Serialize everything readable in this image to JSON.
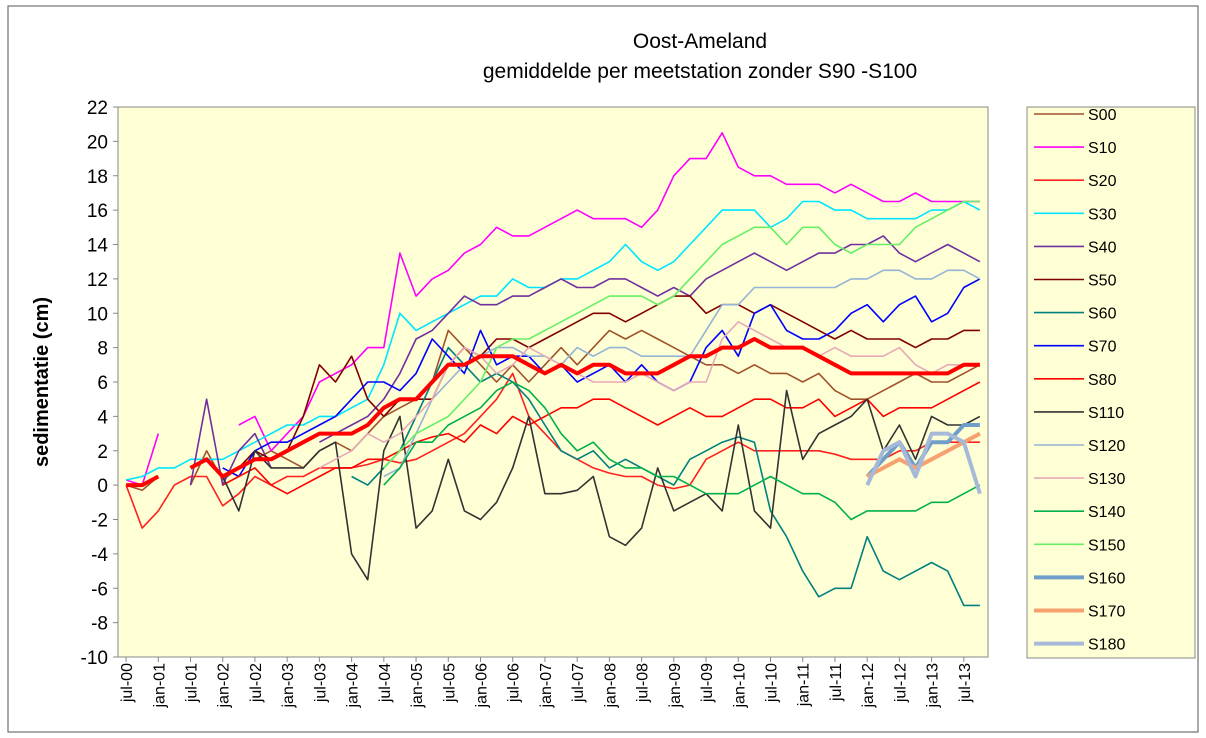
{
  "chart_data": {
    "type": "line",
    "title": "Oost-Ameland",
    "subtitle": "gemiddelde per meetstation zonder S90 -S100",
    "y_label": "sedimentatie (cm)",
    "legend": "right",
    "categories": [
      "jul-00",
      null,
      "jan-01",
      null,
      "jul-01",
      null,
      "jan-02",
      null,
      "jul-02",
      null,
      "jan-03",
      null,
      "jul-03",
      null,
      "jan-04",
      null,
      "jul-04",
      null,
      "jan-05",
      null,
      "jul-05",
      null,
      "jan-06",
      null,
      "jul-06",
      null,
      "jan-07",
      null,
      "jul-07",
      null,
      "jan-08",
      null,
      "jul-08",
      null,
      "jan-09",
      null,
      "jul-09",
      null,
      "jan-10",
      null,
      "jul-10",
      null,
      "jan-11",
      null,
      "jul-11",
      null,
      "jan-12",
      null,
      "jul-12",
      null,
      "jan-13",
      null,
      "jul-13",
      null
    ],
    "ylim": [
      -10,
      22
    ],
    "yticks": [
      -10,
      -8,
      -6,
      -4,
      -2,
      0,
      2,
      4,
      6,
      8,
      10,
      12,
      14,
      16,
      18,
      20,
      22
    ],
    "series": [
      {
        "name": "S00",
        "color": "#a0522d",
        "values": [
          0,
          -0.3,
          0.5,
          null,
          0,
          2,
          0.3,
          1,
          1.5,
          2,
          1.5,
          1,
          2,
          2.5,
          2,
          3,
          4,
          4.5,
          5,
          6,
          9,
          8,
          7,
          6,
          7,
          6,
          7,
          8,
          7,
          8,
          9,
          8.5,
          9,
          8.5,
          8,
          7.5,
          7,
          7,
          6.5,
          7,
          6.5,
          6.5,
          6,
          6.5,
          5.5,
          5,
          5,
          5.5,
          6,
          6.5,
          6,
          6,
          6.5,
          7
        ]
      },
      {
        "name": "S10",
        "color": "#ff00ff",
        "values": [
          0.3,
          0,
          3,
          null,
          null,
          null,
          null,
          3.5,
          4,
          2,
          3,
          4,
          6,
          6.5,
          7,
          8,
          8,
          13.5,
          11,
          12,
          12.5,
          13.5,
          14,
          15,
          14.5,
          14.5,
          15,
          15.5,
          16,
          15.5,
          15.5,
          15.5,
          15,
          16,
          18,
          19,
          19,
          20.5,
          18.5,
          18,
          18,
          17.5,
          17.5,
          17.5,
          17,
          17.5,
          17,
          16.5,
          16.5,
          17,
          16.5,
          16.5,
          16.5,
          16.5
        ]
      },
      {
        "name": "S20",
        "color": "#ff2020",
        "values": [
          0,
          -2.5,
          -1.5,
          0,
          0.5,
          0.5,
          -1.2,
          -0.5,
          0.5,
          0,
          0.5,
          0.5,
          1,
          1,
          1,
          1.2,
          1.5,
          1.3,
          1.5,
          2,
          2.5,
          3,
          4,
          5,
          6.5,
          4,
          3,
          2,
          1.5,
          1,
          0.7,
          0.5,
          0.5,
          0,
          -0.2,
          0,
          1.5,
          2,
          2.5,
          2,
          2,
          2,
          2,
          2,
          1.8,
          1.5,
          1.5,
          1.5,
          2,
          2,
          2.5,
          2.5,
          2.5,
          2.5
        ]
      },
      {
        "name": "S30",
        "color": "#00e5ff",
        "values": [
          0.3,
          0.5,
          1,
          1,
          1.5,
          1.5,
          1.5,
          2,
          2.5,
          3,
          3.5,
          3.5,
          4,
          4,
          4.5,
          5,
          7,
          10,
          9,
          9.5,
          10,
          10.5,
          11,
          11,
          12,
          11.5,
          11.5,
          12,
          12,
          12.5,
          13,
          14,
          13,
          12.5,
          13,
          14,
          15,
          16,
          16,
          16,
          15,
          15.5,
          16.5,
          16.5,
          16,
          16,
          15.5,
          15.5,
          15.5,
          15.5,
          16,
          16,
          16.5,
          16
        ]
      },
      {
        "name": "S40",
        "color": "#7030a0",
        "values": [
          null,
          null,
          null,
          null,
          0,
          5,
          0,
          2,
          3,
          1,
          null,
          null,
          2.5,
          3,
          3.5,
          4,
          5,
          6.5,
          8.5,
          9,
          10,
          11,
          10.5,
          10.5,
          11,
          11,
          11.5,
          12,
          11.5,
          11.5,
          12,
          12,
          11.5,
          11,
          11.5,
          11,
          12,
          12.5,
          13,
          13.5,
          13,
          12.5,
          13,
          13.5,
          13.5,
          14,
          14,
          14.5,
          13.5,
          13,
          13.5,
          14,
          13.5,
          13
        ]
      },
      {
        "name": "S50",
        "color": "#800000",
        "values": [
          null,
          null,
          null,
          null,
          null,
          null,
          0.5,
          1,
          2,
          1.5,
          2,
          4,
          7,
          6,
          7.5,
          5,
          4,
          5,
          5,
          5,
          7,
          8,
          7.5,
          8.5,
          8.5,
          8,
          8.5,
          9,
          9.5,
          10,
          10,
          9.5,
          10,
          10.5,
          11,
          11,
          10,
          10.5,
          10.5,
          10,
          10.5,
          10,
          9.5,
          9,
          8.5,
          9,
          8.5,
          8.5,
          8.5,
          8,
          8.5,
          8.5,
          9,
          9
        ]
      },
      {
        "name": "S60",
        "color": "#008080",
        "values": [
          null,
          null,
          null,
          null,
          null,
          null,
          null,
          null,
          null,
          null,
          null,
          null,
          null,
          null,
          0.5,
          0,
          1,
          2,
          4,
          6,
          8,
          7,
          6,
          6.5,
          6,
          5,
          3.5,
          2,
          1.5,
          2,
          1,
          1.5,
          1,
          0.5,
          0,
          1.5,
          2,
          2.5,
          2.8,
          2.5,
          -1.5,
          -3,
          -5,
          -6.5,
          -6,
          -6,
          -3,
          -5,
          -5.5,
          -5,
          -4.5,
          -5,
          -7,
          -7
        ]
      },
      {
        "name": "S70",
        "color": "#0000ff",
        "values": [
          null,
          null,
          null,
          null,
          null,
          null,
          1,
          0.5,
          2,
          2.5,
          2.5,
          3,
          3.5,
          4,
          5,
          6,
          6,
          5.5,
          6.5,
          8.5,
          7.5,
          6.5,
          9,
          7,
          7.5,
          7.5,
          6.5,
          7,
          6,
          6.5,
          7,
          6,
          7,
          6,
          5.5,
          6,
          8,
          9,
          7.5,
          10,
          10.5,
          9,
          8.5,
          8.5,
          9,
          10,
          10.5,
          9.5,
          10.5,
          11,
          9.5,
          10,
          11.5,
          12
        ]
      },
      {
        "name": "S80",
        "color": "#ff0000",
        "values": [
          null,
          null,
          null,
          null,
          null,
          null,
          0,
          0.5,
          1,
          0,
          -0.5,
          0,
          0.5,
          1,
          1,
          1.5,
          1.5,
          2,
          2.5,
          2.8,
          3,
          2.5,
          3.5,
          3,
          4,
          3.5,
          4,
          4.5,
          4.5,
          5,
          5,
          4.5,
          4,
          3.5,
          4,
          4.5,
          4,
          4,
          4.5,
          5,
          5,
          4.5,
          4.5,
          5,
          4,
          4.5,
          5,
          4,
          4.5,
          4.5,
          4.5,
          5,
          5.5,
          6
        ]
      },
      {
        "name": "S110",
        "color": "#333333",
        "values": [
          null,
          null,
          null,
          null,
          null,
          null,
          0.5,
          -1.5,
          2,
          1,
          1,
          1,
          2,
          2.5,
          -4,
          -5.5,
          2,
          4,
          -2.5,
          -1.5,
          1.5,
          -1.5,
          -2,
          -1,
          1,
          4,
          -0.5,
          -0.5,
          -0.3,
          0.5,
          -3,
          -3.5,
          -2.5,
          1,
          -1.5,
          -1,
          -0.5,
          -1.5,
          3.5,
          -1.5,
          -2.5,
          5.5,
          1.5,
          3,
          3.5,
          4,
          5,
          2,
          3.5,
          1.5,
          4,
          3.5,
          3.5,
          4
        ]
      },
      {
        "name": "S120",
        "color": "#95b3d7",
        "values": [
          null,
          null,
          null,
          null,
          null,
          null,
          null,
          null,
          null,
          null,
          null,
          null,
          null,
          null,
          null,
          null,
          0.5,
          1,
          3,
          5,
          6,
          7,
          7.5,
          8,
          8,
          7.5,
          7.5,
          7,
          8,
          7.5,
          8,
          8,
          7.5,
          7.5,
          7.5,
          7.5,
          9,
          10.5,
          10.5,
          11.5,
          11.5,
          11.5,
          11.5,
          11.5,
          11.5,
          12,
          12,
          12.5,
          12.5,
          12,
          12,
          12.5,
          12.5,
          12
        ]
      },
      {
        "name": "S130",
        "color": "#e6a9b8",
        "values": [
          null,
          null,
          null,
          null,
          null,
          null,
          null,
          null,
          null,
          null,
          null,
          null,
          1,
          1.5,
          2,
          3,
          2.5,
          3,
          4,
          5,
          7,
          8,
          7.5,
          6.5,
          7,
          8,
          7.5,
          7,
          6.5,
          6,
          6,
          6,
          6.5,
          6,
          5.5,
          6,
          6,
          8.5,
          9.5,
          9,
          8.5,
          8,
          8,
          7.5,
          8,
          7.5,
          7.5,
          7.5,
          8,
          7,
          6.5,
          7,
          7,
          7
        ]
      },
      {
        "name": "S140",
        "color": "#00b050",
        "values": [
          null,
          null,
          null,
          null,
          null,
          null,
          null,
          null,
          null,
          null,
          null,
          null,
          null,
          null,
          null,
          null,
          0,
          1,
          2.5,
          2.5,
          3.5,
          4,
          4.5,
          5.5,
          6,
          5.5,
          4.5,
          3,
          2,
          2.5,
          1.5,
          1,
          1,
          0.5,
          0.5,
          0,
          -0.5,
          -0.5,
          -0.5,
          0,
          0.5,
          0,
          -0.5,
          -0.5,
          -1,
          -2,
          -1.5,
          -1.5,
          -1.5,
          -1.5,
          -1,
          -1,
          -0.5,
          0
        ]
      },
      {
        "name": "S150",
        "color": "#66ee66",
        "values": [
          null,
          null,
          null,
          null,
          null,
          null,
          null,
          null,
          null,
          null,
          null,
          null,
          null,
          null,
          null,
          null,
          1,
          2,
          3,
          3.5,
          4,
          5,
          6,
          8,
          8.5,
          8.5,
          9,
          9.5,
          10,
          10.5,
          11,
          11,
          11,
          10.5,
          11,
          12,
          13,
          14,
          14.5,
          15,
          15,
          14,
          15,
          15,
          14,
          13.5,
          14,
          14,
          14,
          15,
          15.5,
          16,
          16.5,
          16.5
        ]
      },
      {
        "name": "S160",
        "color": "#6f9fc8",
        "linewidth": 4,
        "values": [
          null,
          null,
          null,
          null,
          null,
          null,
          null,
          null,
          null,
          null,
          null,
          null,
          null,
          null,
          null,
          null,
          null,
          null,
          null,
          null,
          null,
          null,
          null,
          null,
          null,
          null,
          null,
          null,
          null,
          null,
          null,
          null,
          null,
          null,
          null,
          null,
          null,
          null,
          null,
          null,
          null,
          null,
          null,
          null,
          null,
          null,
          0.5,
          1.5,
          2.5,
          1,
          2.5,
          2.5,
          3.5,
          3.5
        ]
      },
      {
        "name": "S170",
        "color": "#f7a070",
        "linewidth": 4,
        "values": [
          null,
          null,
          null,
          null,
          null,
          null,
          null,
          null,
          null,
          null,
          null,
          null,
          null,
          null,
          null,
          null,
          null,
          null,
          null,
          null,
          null,
          null,
          null,
          null,
          null,
          null,
          null,
          null,
          null,
          null,
          null,
          null,
          null,
          null,
          null,
          null,
          null,
          null,
          null,
          null,
          null,
          null,
          null,
          null,
          null,
          null,
          0.5,
          1,
          1.5,
          1,
          1.5,
          2,
          2.5,
          3
        ]
      },
      {
        "name": "S180",
        "color": "#a6b9d8",
        "linewidth": 4,
        "values": [
          null,
          null,
          null,
          null,
          null,
          null,
          null,
          null,
          null,
          null,
          null,
          null,
          null,
          null,
          null,
          null,
          null,
          null,
          null,
          null,
          null,
          null,
          null,
          null,
          null,
          null,
          null,
          null,
          null,
          null,
          null,
          null,
          null,
          null,
          null,
          null,
          null,
          null,
          null,
          null,
          null,
          null,
          null,
          null,
          null,
          null,
          0,
          2,
          2.5,
          0.5,
          3,
          3,
          2.5,
          -0.5
        ]
      },
      {
        "color": "#ff0000",
        "linewidth": 4,
        "values": [
          0,
          0,
          0.5,
          null,
          1,
          1.5,
          0.5,
          1,
          1.5,
          1.5,
          2,
          2.5,
          3,
          3,
          3,
          3.5,
          4.5,
          5,
          5,
          6,
          7,
          7,
          7.5,
          7.5,
          7.5,
          7,
          6.5,
          7,
          6.5,
          7,
          7,
          6.5,
          6.5,
          6.5,
          7,
          7.5,
          7.5,
          8,
          8,
          8.5,
          8,
          8,
          8,
          7.5,
          7,
          6.5,
          6.5,
          6.5,
          6.5,
          6.5,
          6.5,
          6.5,
          7,
          7
        ]
      }
    ]
  }
}
